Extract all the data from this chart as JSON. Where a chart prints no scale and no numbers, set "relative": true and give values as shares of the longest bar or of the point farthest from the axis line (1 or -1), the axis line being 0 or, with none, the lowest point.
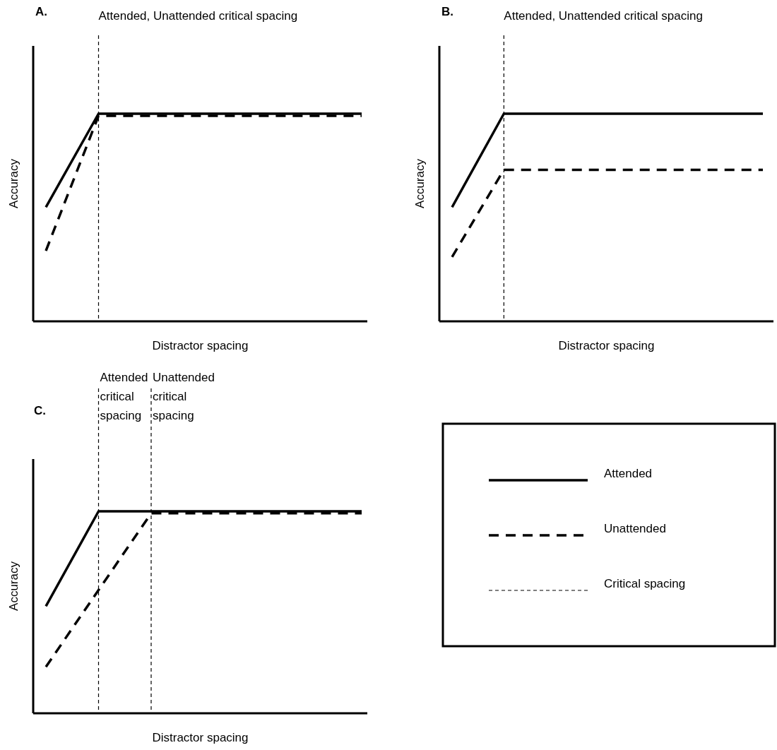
{
  "chart_data": [
    {
      "type": "line",
      "title": "A.",
      "xlabel": "Distractor spacing",
      "ylabel": "Accuracy",
      "relative": true,
      "categories": [
        null,
        null,
        null,
        null,
        null,
        null,
        null
      ],
      "series": [
        {
          "color": "#000000",
          "line_style": "solid",
          "values": [
            0.55,
            1,
            1,
            1,
            1,
            1,
            1
          ]
        },
        {
          "color": "#000000",
          "line_style": "dashed",
          "values": [
            0.34,
            0.99,
            0.99,
            0.99,
            0.99,
            0.99,
            0.99
          ]
        }
      ],
      "annotations": [
        "Attended, Unattended critical spacing"
      ]
    },
    {
      "type": "line",
      "title": "B.",
      "xlabel": "Distractor spacing",
      "ylabel": "Accuracy",
      "relative": true,
      "categories": [
        null,
        null,
        null,
        null,
        null,
        null,
        null
      ],
      "series": [
        {
          "color": "#000000",
          "line_style": "solid",
          "values": [
            0.55,
            1,
            1,
            1,
            1,
            1,
            1
          ]
        },
        {
          "color": "#000000",
          "line_style": "dashed",
          "values": [
            0.31,
            0.73,
            0.73,
            0.73,
            0.73,
            0.73,
            0.73
          ]
        }
      ],
      "annotations": [
        "Attended, Unattended critical spacing"
      ]
    },
    {
      "type": "line",
      "title": "C.",
      "xlabel": "Distractor spacing",
      "ylabel": "Accuracy",
      "relative": true,
      "categories": [
        null,
        null,
        null,
        null,
        null,
        null,
        null
      ],
      "legend": "right",
      "series": [
        {
          "name": "Attended",
          "color": "#000000",
          "line_style": "solid",
          "values": [
            0.53,
            1,
            1,
            1,
            1,
            1,
            1
          ]
        },
        {
          "name": "Unattended",
          "color": "#000000",
          "line_style": "dashed",
          "values": [
            0.23,
            0.61,
            0.99,
            0.99,
            0.99,
            0.99,
            0.99
          ]
        }
      ],
      "annotations": [
        "Attended critical spacing",
        "Unattended critical spacing",
        "Critical spacing"
      ]
    }
  ]
}
